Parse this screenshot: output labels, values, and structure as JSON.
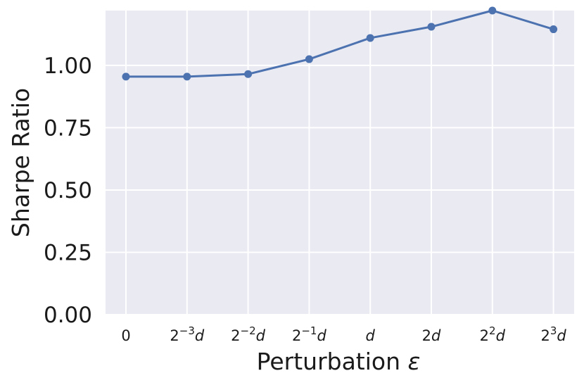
{
  "chart_data": {
    "type": "line",
    "title": "",
    "xlabel": "Perturbation",
    "xlabel_symbol": "ε",
    "ylabel": "Sharpe Ratio",
    "categories": [
      {
        "base": "0",
        "exp": "",
        "suffix": ""
      },
      {
        "base": "2",
        "exp": "−3",
        "suffix": "d"
      },
      {
        "base": "2",
        "exp": "−2",
        "suffix": "d"
      },
      {
        "base": "2",
        "exp": "−1",
        "suffix": "d"
      },
      {
        "base": "",
        "exp": "",
        "suffix": "d"
      },
      {
        "base": "2",
        "exp": "",
        "suffix": "d"
      },
      {
        "base": "2",
        "exp": "2",
        "suffix": "d"
      },
      {
        "base": "2",
        "exp": "3",
        "suffix": "d"
      }
    ],
    "series": [
      {
        "values": [
          0.955,
          0.955,
          0.965,
          1.025,
          1.11,
          1.155,
          1.22,
          1.145
        ],
        "color": "#4c72b0"
      }
    ],
    "yticks": [
      "0.00",
      "0.25",
      "0.50",
      "0.75",
      "1.00"
    ],
    "ylim": [
      0.0,
      1.22
    ],
    "grid": true,
    "background_color": "#eaeaf2",
    "grid_color": "#ffffff"
  }
}
